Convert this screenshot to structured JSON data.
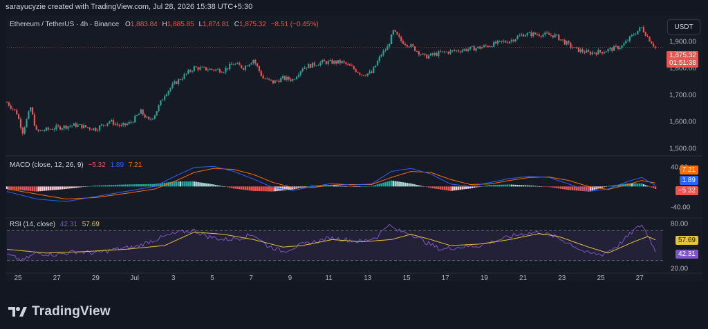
{
  "header": {
    "attribution": "sarayucyzie created with TradingView.com, Jul 28, 2026 15:38 UTC+5:30"
  },
  "price_legend": {
    "symbol": "Ethereum / TetherUS · 4h · Binance",
    "o_label": "O",
    "o_value": "1,883.84",
    "h_label": "H",
    "h_value": "1,885.85",
    "l_label": "L",
    "l_value": "1,874.81",
    "c_label": "C",
    "c_value": "1,875.32",
    "change": "−8.51 (−0.45%)"
  },
  "currency_button": "USDT",
  "price_box": {
    "price": "1,875.32",
    "countdown": "01:51:38"
  },
  "macd_legend": {
    "title": "MACD (close, 12, 26, 9)",
    "hist": "−5.32",
    "macd": "1.89",
    "signal": "7.21"
  },
  "rsi_legend": {
    "title": "RSI (14, close)",
    "rsi": "42.31",
    "ma": "57.69"
  },
  "footer": {
    "brand": "TradingView"
  },
  "colors": {
    "up": "#26a69a",
    "down": "#ef5350",
    "macd": "#2962ff",
    "signal": "#ff6d00",
    "rsi": "#7e57c2",
    "rsi_ma": "#e5c23b",
    "bg": "#161a25"
  },
  "chart_data": [
    {
      "type": "candlestick",
      "x_ticks": [
        "25",
        "27",
        "29",
        "Jul",
        "3",
        "5",
        "7",
        "9",
        "11",
        "13",
        "15",
        "17",
        "19",
        "21",
        "23",
        "25",
        "27"
      ],
      "y_ticks": [
        "1,900.00",
        "1,800.00",
        "1,700.00",
        "1,600.00",
        "1,500.00"
      ],
      "ylim": [
        1480,
        1960
      ],
      "last_price": 1875.32,
      "close_path": [
        [
          0,
          1670
        ],
        [
          5,
          1630
        ],
        [
          8,
          1560
        ],
        [
          12,
          1650
        ],
        [
          15,
          1560
        ],
        [
          25,
          1575
        ],
        [
          35,
          1585
        ],
        [
          45,
          1570
        ],
        [
          52,
          1600
        ],
        [
          58,
          1580
        ],
        [
          63,
          1595
        ],
        [
          68,
          1635
        ],
        [
          72,
          1600
        ],
        [
          75,
          1625
        ],
        [
          80,
          1700
        ],
        [
          85,
          1740
        ],
        [
          90,
          1770
        ],
        [
          95,
          1800
        ],
        [
          100,
          1795
        ],
        [
          110,
          1790
        ],
        [
          115,
          1815
        ],
        [
          120,
          1800
        ],
        [
          125,
          1830
        ],
        [
          130,
          1760
        ],
        [
          135,
          1745
        ],
        [
          140,
          1760
        ],
        [
          145,
          1755
        ],
        [
          150,
          1800
        ],
        [
          160,
          1820
        ],
        [
          170,
          1820
        ],
        [
          175,
          1800
        ],
        [
          180,
          1775
        ],
        [
          185,
          1780
        ],
        [
          190,
          1850
        ],
        [
          193,
          1875
        ],
        [
          196,
          1935
        ],
        [
          200,
          1900
        ],
        [
          205,
          1880
        ],
        [
          212,
          1840
        ],
        [
          220,
          1855
        ],
        [
          230,
          1865
        ],
        [
          240,
          1875
        ],
        [
          248,
          1890
        ],
        [
          255,
          1900
        ],
        [
          262,
          1925
        ],
        [
          270,
          1925
        ],
        [
          278,
          1920
        ],
        [
          282,
          1900
        ],
        [
          288,
          1870
        ],
        [
          295,
          1855
        ],
        [
          302,
          1860
        ],
        [
          312,
          1880
        ],
        [
          318,
          1925
        ],
        [
          322,
          1950
        ],
        [
          325,
          1915
        ],
        [
          329,
          1875
        ]
      ]
    },
    {
      "type": "macd",
      "params": "close, 12, 26, 9",
      "y_ticks": [
        "40.00",
        "-40.00"
      ],
      "ylim": [
        -60,
        50
      ],
      "last": {
        "histogram": -5.32,
        "macd": 1.89,
        "signal": 7.21
      },
      "macd_path": [
        [
          0,
          -10
        ],
        [
          15,
          -25
        ],
        [
          30,
          -30
        ],
        [
          45,
          -20
        ],
        [
          60,
          -10
        ],
        [
          75,
          0
        ],
        [
          85,
          20
        ],
        [
          95,
          38
        ],
        [
          105,
          40
        ],
        [
          115,
          30
        ],
        [
          125,
          15
        ],
        [
          135,
          -2
        ],
        [
          145,
          -8
        ],
        [
          155,
          0
        ],
        [
          165,
          6
        ],
        [
          175,
          3
        ],
        [
          185,
          5
        ],
        [
          195,
          30
        ],
        [
          205,
          36
        ],
        [
          215,
          25
        ],
        [
          225,
          5
        ],
        [
          235,
          0
        ],
        [
          245,
          8
        ],
        [
          255,
          16
        ],
        [
          265,
          20
        ],
        [
          275,
          18
        ],
        [
          285,
          5
        ],
        [
          295,
          -10
        ],
        [
          305,
          -5
        ],
        [
          315,
          10
        ],
        [
          322,
          18
        ],
        [
          329,
          2
        ]
      ],
      "signal_path": [
        [
          0,
          -5
        ],
        [
          15,
          -15
        ],
        [
          30,
          -25
        ],
        [
          45,
          -22
        ],
        [
          60,
          -14
        ],
        [
          75,
          -5
        ],
        [
          85,
          10
        ],
        [
          95,
          28
        ],
        [
          105,
          36
        ],
        [
          115,
          34
        ],
        [
          125,
          24
        ],
        [
          135,
          8
        ],
        [
          145,
          -2
        ],
        [
          155,
          -2
        ],
        [
          165,
          3
        ],
        [
          175,
          4
        ],
        [
          185,
          4
        ],
        [
          195,
          18
        ],
        [
          205,
          30
        ],
        [
          215,
          28
        ],
        [
          225,
          14
        ],
        [
          235,
          4
        ],
        [
          245,
          5
        ],
        [
          255,
          12
        ],
        [
          265,
          18
        ],
        [
          275,
          19
        ],
        [
          285,
          12
        ],
        [
          295,
          0
        ],
        [
          305,
          -6
        ],
        [
          315,
          4
        ],
        [
          322,
          12
        ],
        [
          329,
          7
        ]
      ]
    },
    {
      "type": "rsi",
      "params": "14, close",
      "y_ticks": [
        "80.00",
        "20.00"
      ],
      "ylim": [
        15,
        85
      ],
      "bands": [
        70,
        30
      ],
      "last": {
        "rsi": 42.31,
        "rsi_ma": 57.69
      },
      "rsi_path": [
        [
          0,
          38
        ],
        [
          8,
          30
        ],
        [
          15,
          40
        ],
        [
          25,
          38
        ],
        [
          35,
          42
        ],
        [
          45,
          40
        ],
        [
          55,
          45
        ],
        [
          65,
          48
        ],
        [
          72,
          55
        ],
        [
          80,
          62
        ],
        [
          88,
          68
        ],
        [
          95,
          70
        ],
        [
          102,
          62
        ],
        [
          110,
          58
        ],
        [
          118,
          60
        ],
        [
          125,
          65
        ],
        [
          132,
          50
        ],
        [
          140,
          42
        ],
        [
          148,
          50
        ],
        [
          156,
          55
        ],
        [
          164,
          60
        ],
        [
          172,
          58
        ],
        [
          180,
          55
        ],
        [
          188,
          62
        ],
        [
          193,
          78
        ],
        [
          198,
          70
        ],
        [
          205,
          66
        ],
        [
          212,
          55
        ],
        [
          220,
          45
        ],
        [
          230,
          48
        ],
        [
          240,
          50
        ],
        [
          250,
          58
        ],
        [
          260,
          65
        ],
        [
          270,
          68
        ],
        [
          278,
          62
        ],
        [
          286,
          52
        ],
        [
          294,
          40
        ],
        [
          302,
          38
        ],
        [
          310,
          50
        ],
        [
          318,
          70
        ],
        [
          322,
          78
        ],
        [
          326,
          60
        ],
        [
          329,
          42
        ]
      ],
      "rsi_ma_path": [
        [
          0,
          45
        ],
        [
          20,
          40
        ],
        [
          40,
          42
        ],
        [
          60,
          45
        ],
        [
          80,
          50
        ],
        [
          95,
          68
        ],
        [
          110,
          65
        ],
        [
          125,
          58
        ],
        [
          140,
          48
        ],
        [
          150,
          50
        ],
        [
          165,
          58
        ],
        [
          180,
          55
        ],
        [
          195,
          58
        ],
        [
          205,
          65
        ],
        [
          215,
          58
        ],
        [
          225,
          50
        ],
        [
          240,
          52
        ],
        [
          255,
          58
        ],
        [
          270,
          66
        ],
        [
          280,
          62
        ],
        [
          295,
          48
        ],
        [
          305,
          40
        ],
        [
          318,
          55
        ],
        [
          325,
          62
        ],
        [
          329,
          57.69
        ]
      ]
    }
  ]
}
